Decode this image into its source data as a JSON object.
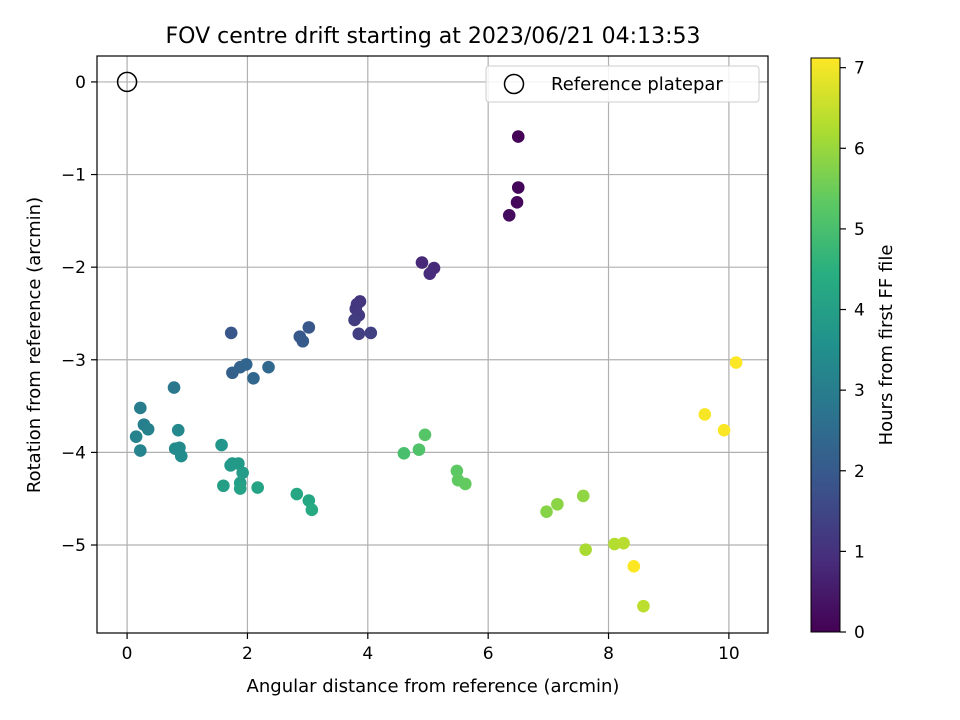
{
  "chart_data": {
    "type": "scatter",
    "title": "FOV centre drift starting at 2023/06/21 04:13:53",
    "xlabel": "Angular distance from reference (arcmin)",
    "ylabel": "Rotation from reference (arcmin)",
    "xlim": [
      -0.5,
      10.65
    ],
    "ylim": [
      -5.95,
      0.28
    ],
    "xticks": [
      0,
      2,
      4,
      6,
      8,
      10
    ],
    "yticks": [
      0,
      -1,
      -2,
      -3,
      -4,
      -5
    ],
    "grid": true,
    "legend": {
      "placement": "top-right",
      "entries": [
        "Reference platepar"
      ]
    },
    "reference_point": {
      "name": "Reference platepar",
      "x": 0,
      "y": 0
    },
    "colorbar": {
      "label": "Hours from first FF file",
      "min": 0,
      "max": 7.12,
      "ticks": [
        0,
        1,
        2,
        3,
        4,
        5,
        6,
        7
      ],
      "colormap": "viridis"
    },
    "series": [
      {
        "x": [
          6.5,
          6.5,
          6.48,
          6.35,
          4.9,
          5.1,
          5.03,
          3.87,
          3.82,
          3.8,
          3.85,
          3.78,
          3.85,
          4.05,
          1.73,
          2.87,
          2.92,
          3.02,
          1.75,
          1.88,
          1.98,
          2.1,
          2.35,
          0.78,
          0.22,
          0.28,
          0.35,
          0.15,
          0.22,
          0.85,
          0.87,
          0.8,
          0.9,
          1.57,
          1.75,
          1.72,
          1.85,
          1.92,
          1.88,
          1.6,
          1.88,
          2.17,
          2.82,
          3.02,
          3.07,
          4.6,
          4.85,
          4.95,
          5.48,
          5.5,
          5.62,
          6.97,
          7.15,
          7.58,
          7.62,
          8.1,
          8.25,
          8.58,
          9.6,
          9.92,
          10.12,
          8.42
        ],
        "y": [
          -0.59,
          -1.14,
          -1.3,
          -1.44,
          -1.95,
          -2.01,
          -2.07,
          -2.37,
          -2.4,
          -2.45,
          -2.52,
          -2.57,
          -2.72,
          -2.71,
          -2.71,
          -2.75,
          -2.8,
          -2.65,
          -3.14,
          -3.08,
          -3.05,
          -3.2,
          -3.08,
          -3.3,
          -3.52,
          -3.7,
          -3.75,
          -3.83,
          -3.98,
          -3.76,
          -3.95,
          -3.96,
          -4.04,
          -3.92,
          -4.12,
          -4.14,
          -4.12,
          -4.22,
          -4.33,
          -4.36,
          -4.39,
          -4.38,
          -4.45,
          -4.52,
          -4.62,
          -4.01,
          -3.97,
          -3.81,
          -4.2,
          -4.3,
          -4.34,
          -4.64,
          -4.56,
          -4.47,
          -5.05,
          -4.99,
          -4.98,
          -5.66,
          -3.59,
          -3.76,
          -3.03,
          -5.23
        ],
        "hours": [
          0.05,
          0.1,
          0.15,
          0.2,
          0.8,
          0.85,
          0.9,
          1.05,
          1.1,
          1.15,
          1.2,
          1.25,
          1.3,
          1.35,
          1.9,
          1.95,
          2.0,
          1.92,
          2.2,
          2.25,
          2.3,
          2.35,
          2.4,
          2.8,
          3.0,
          3.05,
          3.1,
          3.15,
          3.2,
          3.3,
          3.35,
          3.4,
          3.45,
          3.7,
          3.75,
          3.8,
          3.85,
          3.9,
          3.95,
          4.0,
          4.05,
          4.1,
          4.2,
          4.25,
          4.3,
          5.0,
          5.1,
          5.2,
          5.3,
          5.35,
          5.4,
          5.8,
          5.85,
          5.9,
          6.2,
          6.3,
          6.35,
          6.4,
          7.05,
          7.08,
          7.1,
          7.12
        ]
      }
    ]
  }
}
